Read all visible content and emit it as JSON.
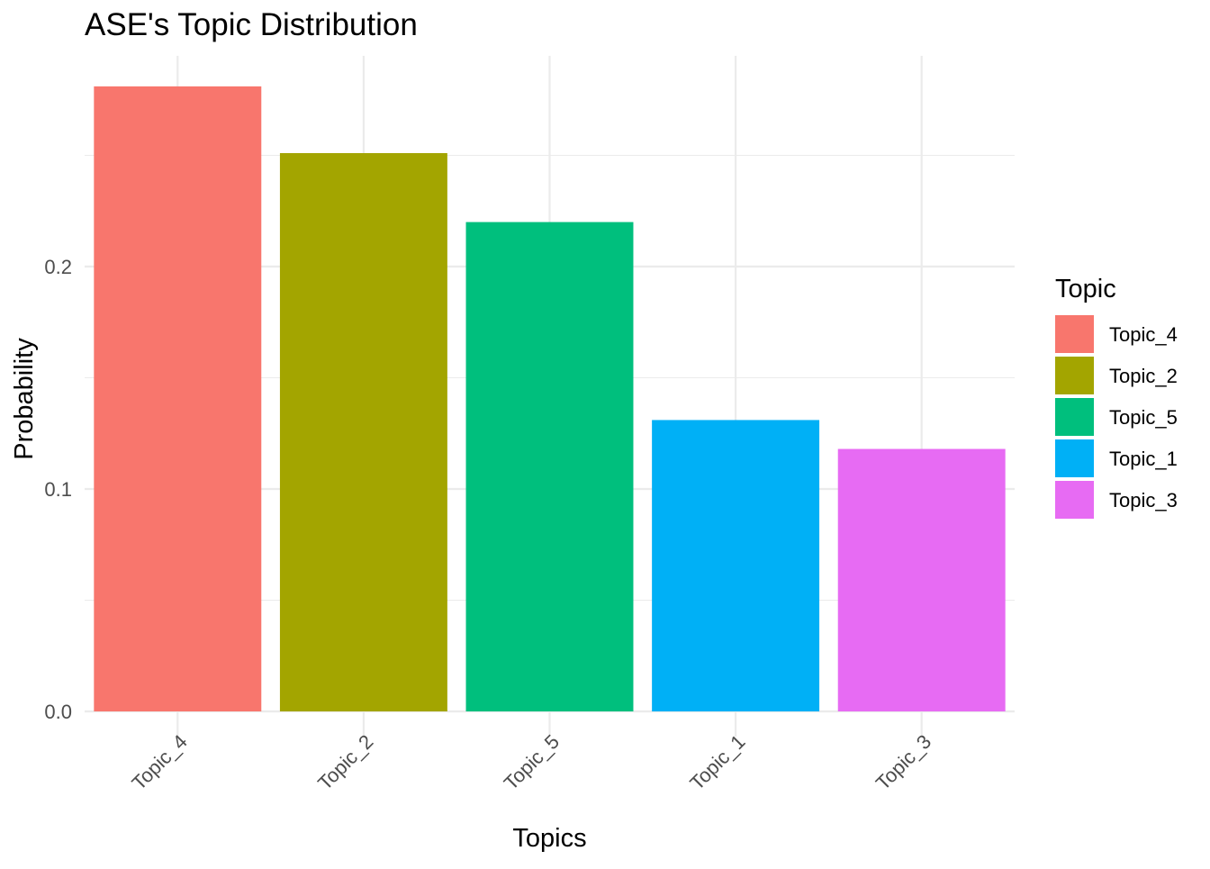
{
  "chart_data": {
    "type": "bar",
    "title": "ASE's Topic Distribution",
    "xlabel": "Topics",
    "ylabel": "Probability",
    "categories": [
      "Topic_4",
      "Topic_2",
      "Topic_5",
      "Topic_1",
      "Topic_3"
    ],
    "values": [
      0.281,
      0.251,
      0.22,
      0.131,
      0.118
    ],
    "colors": [
      "#F8766D",
      "#A3A500",
      "#00BF7D",
      "#00B0F6",
      "#E76BF3"
    ],
    "ylim": [
      0,
      0.3
    ],
    "y_ticks": [
      0.0,
      0.1,
      0.2
    ],
    "y_tick_labels": [
      "0.0",
      "0.1",
      "0.2"
    ],
    "grid": true,
    "x_tick_rotation_deg": 45,
    "legend": {
      "title": "Topic",
      "position": "right",
      "entries": [
        "Topic_4",
        "Topic_2",
        "Topic_5",
        "Topic_1",
        "Topic_3"
      ]
    }
  }
}
